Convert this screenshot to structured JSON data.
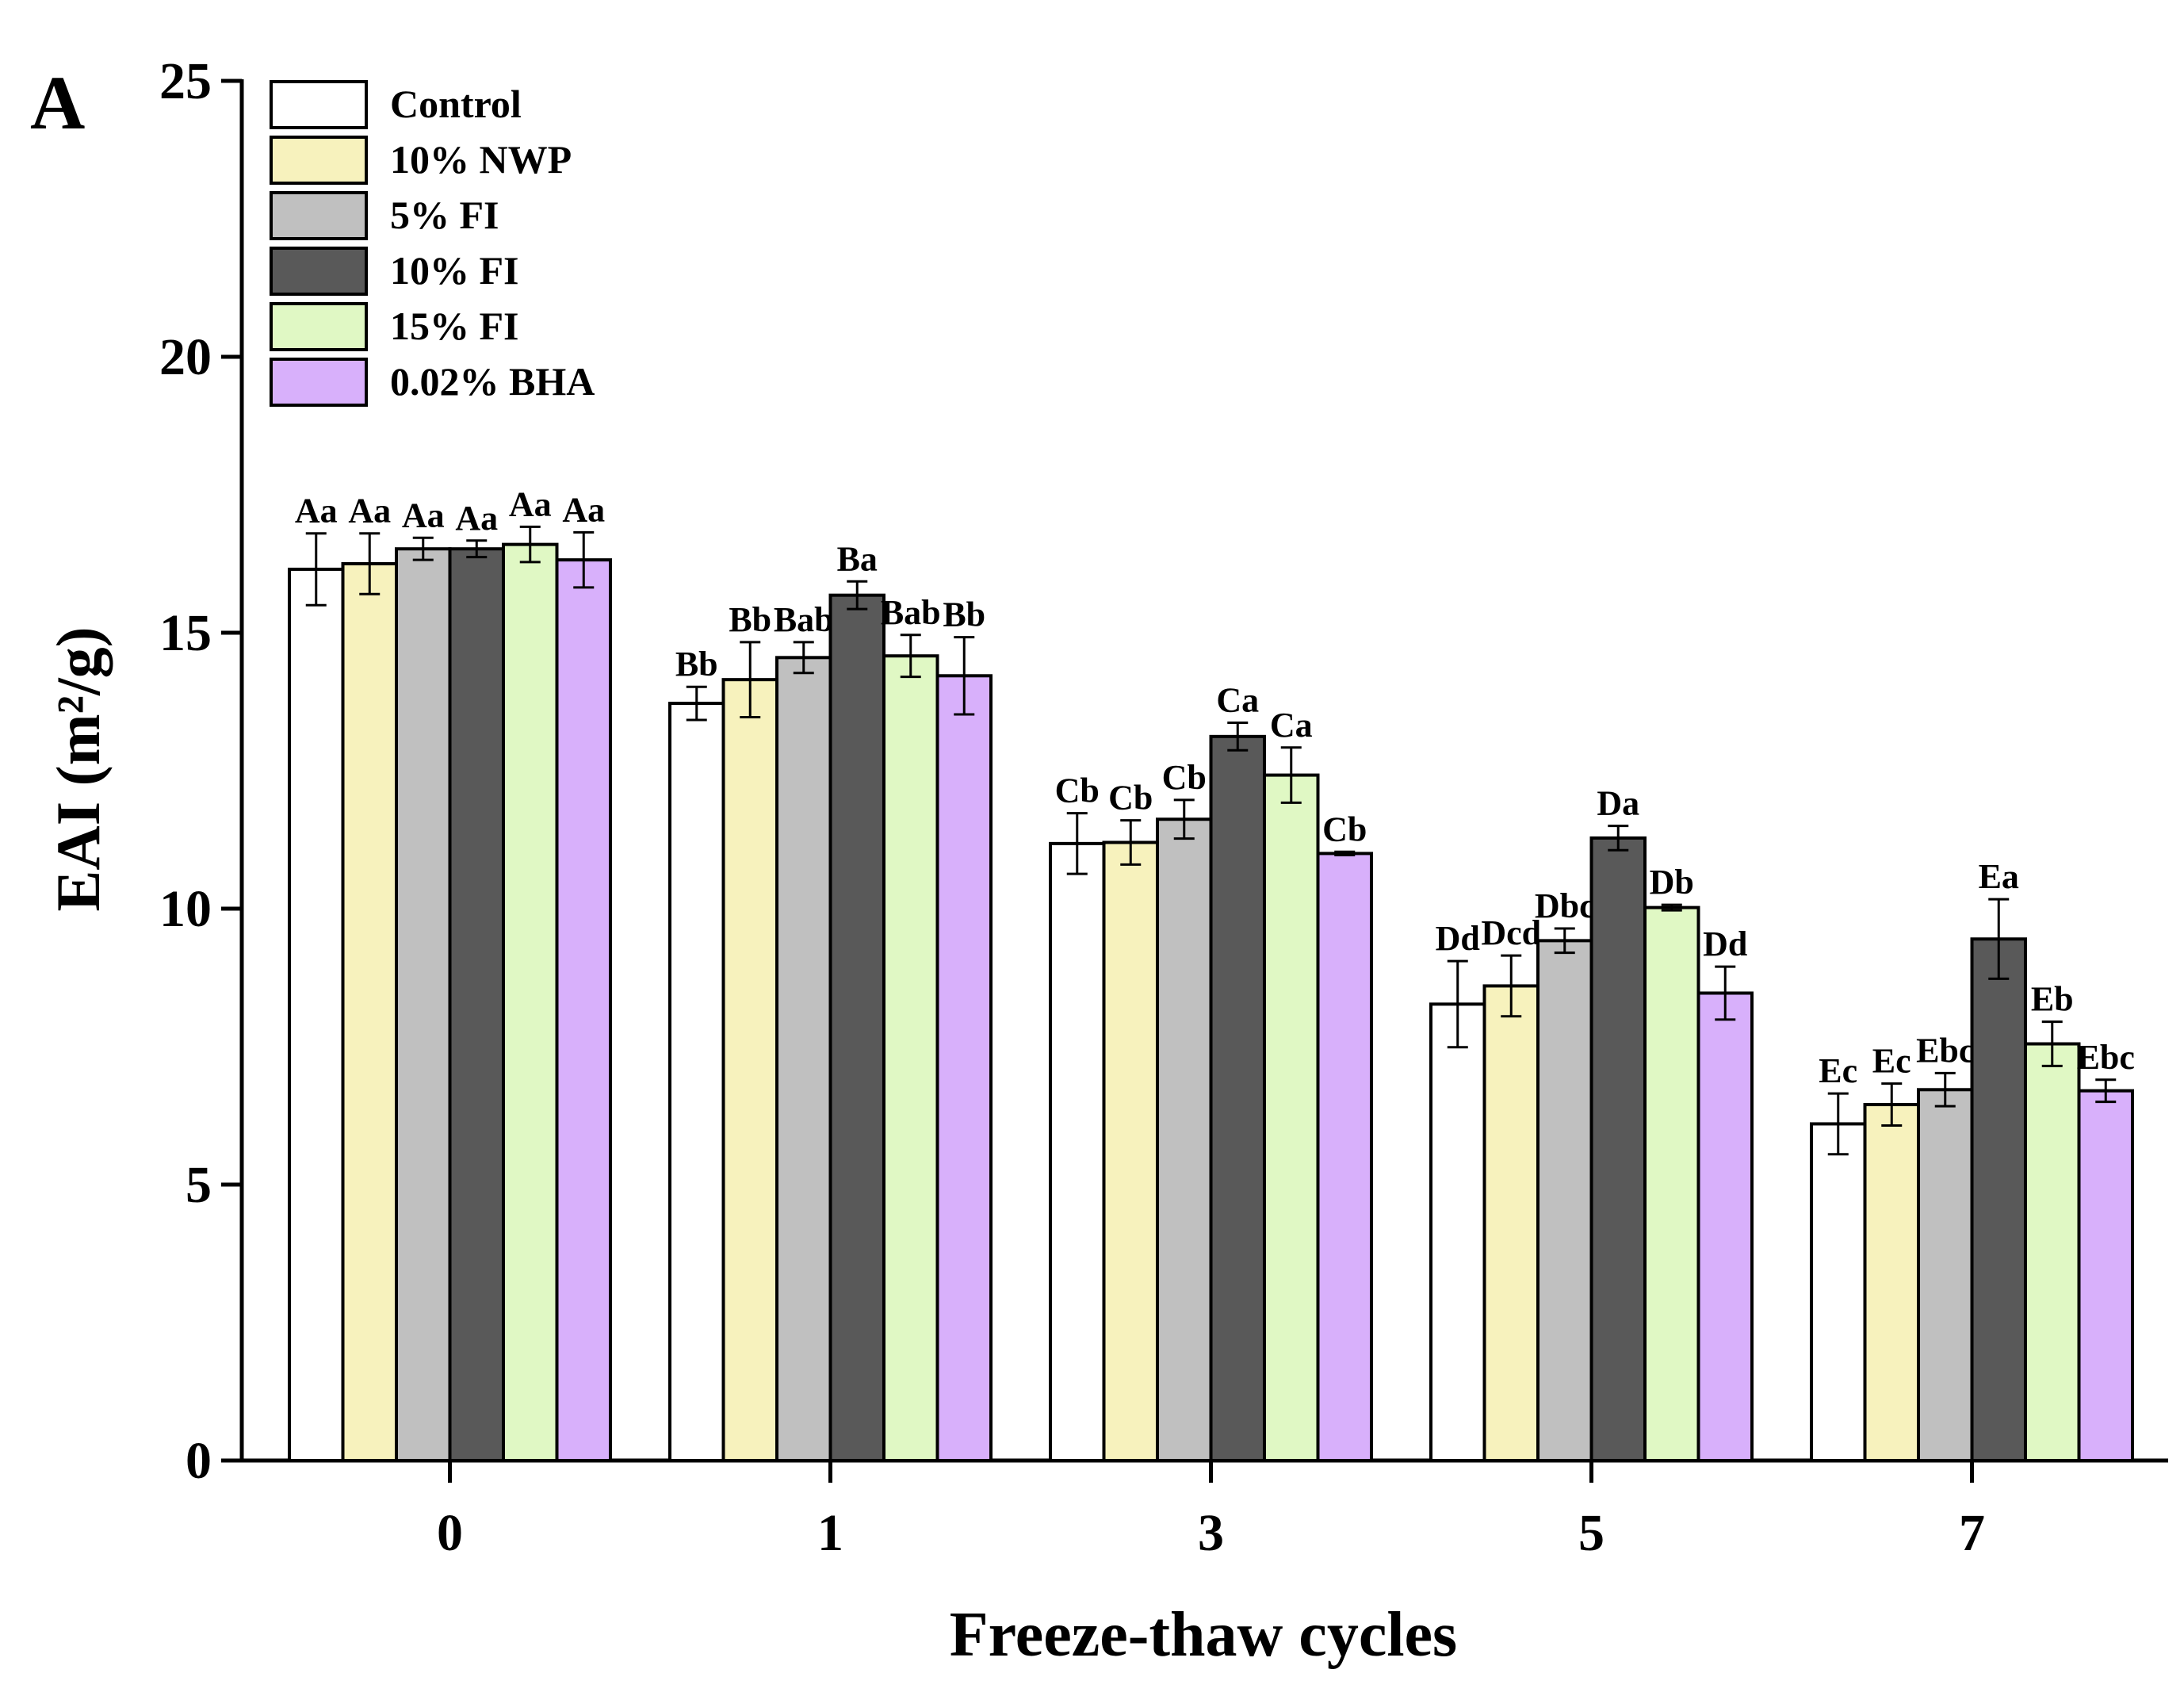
{
  "panel_label": "A",
  "chart_data": {
    "type": "bar",
    "title": "",
    "xlabel": "Freeze-thaw cycles",
    "ylabel": "EAI (m²/g)",
    "ylim": [
      0,
      25
    ],
    "yticks": [
      0,
      5,
      10,
      15,
      20,
      25
    ],
    "grid": false,
    "legend_position": "top-left",
    "categories": [
      "0",
      "1",
      "3",
      "5",
      "7"
    ],
    "series": [
      {
        "name": "Control",
        "color": "#ffffff",
        "values": [
          16.15,
          13.72,
          11.18,
          8.27,
          6.1
        ],
        "errors": [
          0.65,
          0.3,
          0.55,
          0.78,
          0.55
        ],
        "labels": [
          "Aa",
          "Bb",
          "Cb",
          "Dd",
          "Ec"
        ]
      },
      {
        "name": "10% NWP",
        "color": "#f7f2bd",
        "values": [
          16.25,
          14.15,
          11.2,
          8.6,
          6.45
        ],
        "errors": [
          0.55,
          0.68,
          0.4,
          0.55,
          0.38
        ],
        "labels": [
          "Aa",
          "Bb",
          "Cb",
          "Dcd",
          "Ec"
        ]
      },
      {
        "name": "5% FI",
        "color": "#c0c0c0",
        "values": [
          16.52,
          14.55,
          11.62,
          9.42,
          6.72
        ],
        "errors": [
          0.2,
          0.28,
          0.35,
          0.22,
          0.3
        ],
        "labels": [
          "Aa",
          "Bab",
          "Cb",
          "Dbc",
          "Ebc"
        ]
      },
      {
        "name": "10% FI",
        "color": "#595959",
        "values": [
          16.52,
          15.68,
          13.12,
          11.28,
          9.45
        ],
        "errors": [
          0.15,
          0.25,
          0.25,
          0.22,
          0.72
        ],
        "labels": [
          "Aa",
          "Ba",
          "Ca",
          "Da",
          "Ea"
        ]
      },
      {
        "name": "15% FI",
        "color": "#e0f8c4",
        "values": [
          16.6,
          14.58,
          12.42,
          10.02,
          7.55
        ],
        "errors": [
          0.32,
          0.38,
          0.5,
          0.05,
          0.4
        ],
        "labels": [
          "Aa",
          "Bab",
          "Ca",
          "Db",
          "Eb"
        ]
      },
      {
        "name": "0.02% BHA",
        "color": "#d8b0fb",
        "values": [
          16.32,
          14.22,
          11.0,
          8.47,
          6.7
        ],
        "errors": [
          0.5,
          0.7,
          0.03,
          0.48,
          0.2
        ],
        "labels": [
          "Aa",
          "Bb",
          "Cb",
          "Dd",
          "Ebc"
        ]
      }
    ]
  }
}
